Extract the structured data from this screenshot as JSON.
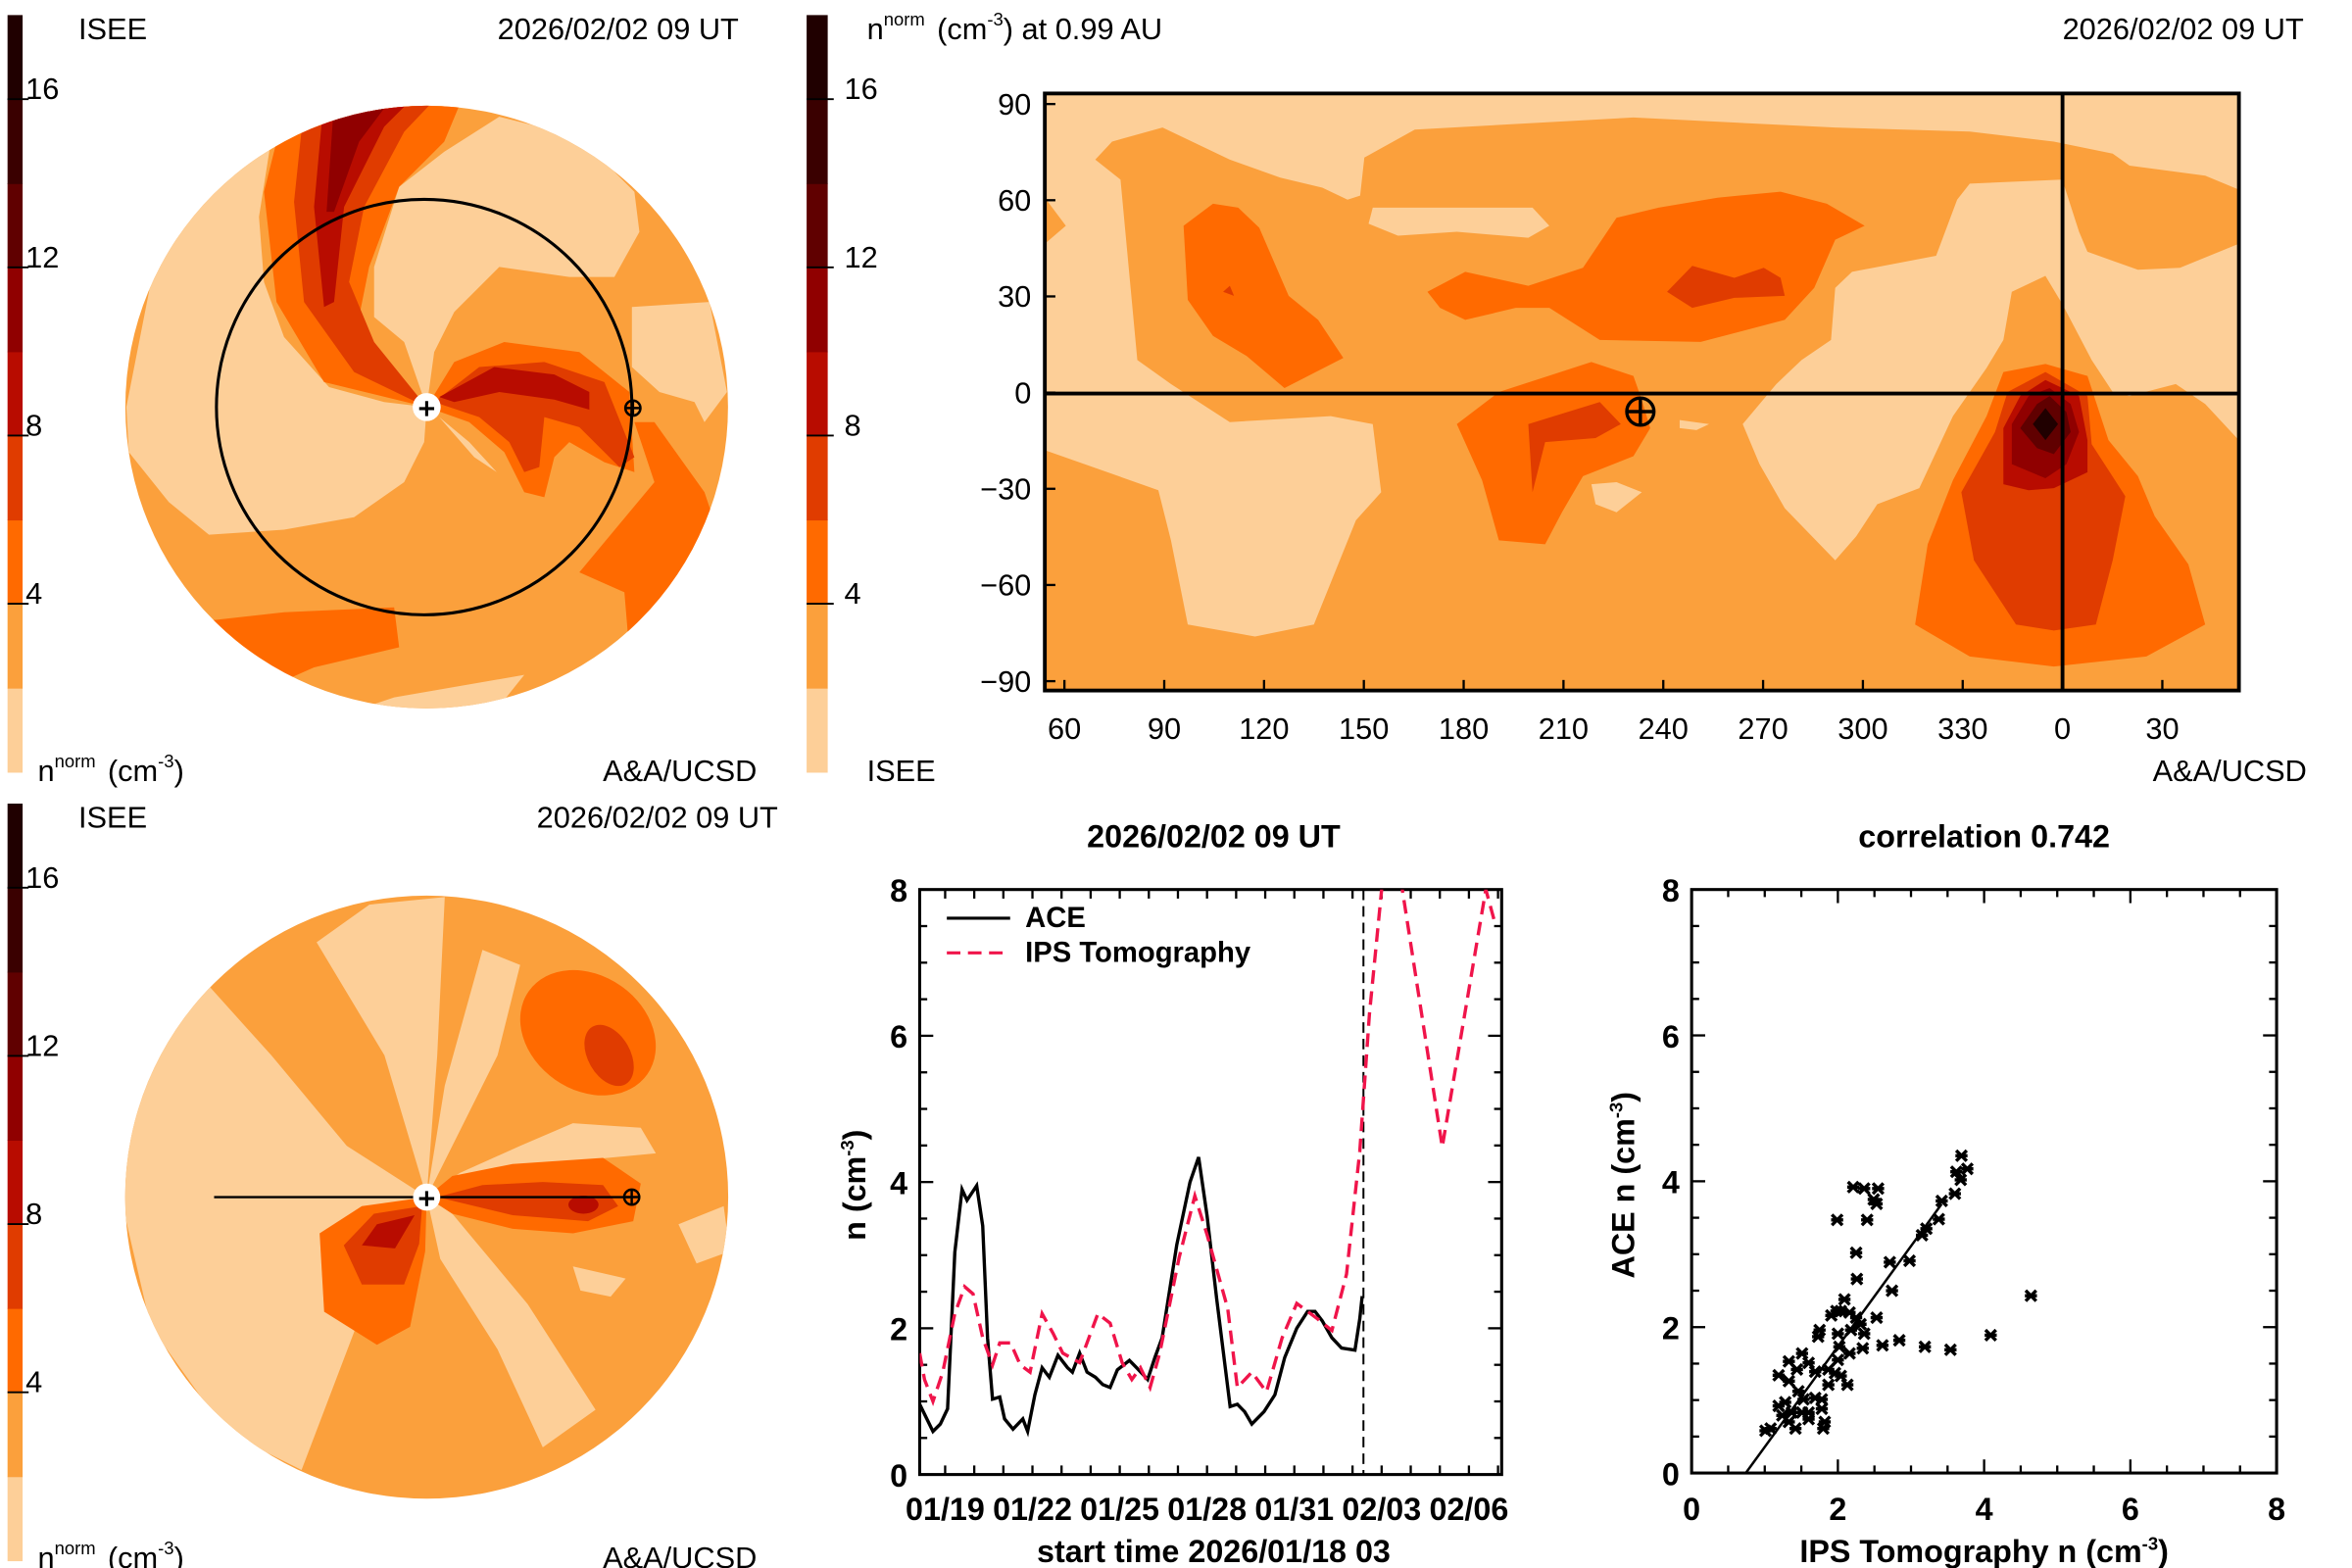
{
  "colors": {
    "levels": [
      "#fdcf98",
      "#fba03c",
      "#ff6a00",
      "#e03c00",
      "#b80c00",
      "#900000",
      "#600000",
      "#3a0000",
      "#200000"
    ],
    "ace": "#000000",
    "ips": "#f0144a"
  },
  "colorbar": {
    "min": 0,
    "max": 18,
    "step": 2,
    "ticks": [
      "4",
      "8",
      "12",
      "16"
    ]
  },
  "panel_top_left": {
    "org": "ISEE",
    "date": "2026/02/02 09 UT",
    "credit": "A&A/UCSD",
    "unit": {
      "base": "n",
      "sup": "norm",
      "open": "(cm",
      "exp": "-3",
      "close": ")"
    }
  },
  "panel_top_right": {
    "title": {
      "base": "n",
      "sup": "norm",
      "open": "(cm",
      "exp": "-3",
      "rest": ") at 0.99 AU"
    },
    "date": "2026/02/02 09 UT",
    "org": "ISEE",
    "credit": "A&A/UCSD",
    "lon_ticks": [
      "60",
      "90",
      "120",
      "150",
      "180",
      "210",
      "240",
      "270",
      "300",
      "330",
      "0",
      "30"
    ],
    "lat_ticks": [
      "90",
      "60",
      "30",
      "0",
      "−30",
      "−60",
      "−90"
    ]
  },
  "panel_bottom_left": {
    "org": "ISEE",
    "date": "2026/02/02 09 UT",
    "credit": "A&A/UCSD",
    "unit": {
      "base": "n",
      "sup": "norm",
      "open": "(cm",
      "exp": "-3",
      "close": ")"
    }
  },
  "chart_data": [
    {
      "type": "line",
      "title": "2026/02/02 09 UT",
      "xlabel": "start time 2026/01/18 03",
      "ylabel": {
        "base": "n (cm",
        "exp": "-3",
        "close": ")"
      },
      "xlim": [
        "01/18 03",
        "02/07 03"
      ],
      "ylim": [
        0,
        8
      ],
      "xticks": [
        "01/19",
        "01/22",
        "01/25",
        "01/28",
        "01/31",
        "02/03",
        "02/06"
      ],
      "yticks": [
        "0",
        "2",
        "4",
        "6",
        "8"
      ],
      "current_time": "02/02 09",
      "legend": "top-left",
      "series": [
        {
          "name": "ACE",
          "style": "solid",
          "points": [
            [
              "01/18 03",
              0.96
            ],
            [
              "01/18 14",
              0.59
            ],
            [
              "01/18 20",
              0.69
            ],
            [
              "01/19 02",
              0.9
            ],
            [
              "01/19 08",
              3.04
            ],
            [
              "01/19 14",
              3.9
            ],
            [
              "01/19 18",
              3.75
            ],
            [
              "01/20 02",
              3.95
            ],
            [
              "01/20 07",
              3.4
            ],
            [
              "01/20 11",
              1.87
            ],
            [
              "01/20 15",
              1.03
            ],
            [
              "01/20 21",
              1.06
            ],
            [
              "01/21 01",
              0.76
            ],
            [
              "01/21 08",
              0.62
            ],
            [
              "01/21 16",
              0.76
            ],
            [
              "01/21 20",
              0.59
            ],
            [
              "01/22 02",
              1.09
            ],
            [
              "01/22 08",
              1.46
            ],
            [
              "01/22 14",
              1.33
            ],
            [
              "01/22 21",
              1.63
            ],
            [
              "01/23 05",
              1.46
            ],
            [
              "01/23 09",
              1.4
            ],
            [
              "01/23 15",
              1.66
            ],
            [
              "01/23 21",
              1.4
            ],
            [
              "01/24 04",
              1.33
            ],
            [
              "01/24 10",
              1.23
            ],
            [
              "01/24 16",
              1.19
            ],
            [
              "01/24 22",
              1.43
            ],
            [
              "01/25 08",
              1.56
            ],
            [
              "01/25 14",
              1.46
            ],
            [
              "01/25 23",
              1.3
            ],
            [
              "01/26 05",
              1.6
            ],
            [
              "01/26 11",
              1.87
            ],
            [
              "01/26 23",
              3.14
            ],
            [
              "01/27 10",
              4.0
            ],
            [
              "01/27 17",
              4.34
            ],
            [
              "01/28 00",
              3.54
            ],
            [
              "01/28 08",
              2.4
            ],
            [
              "01/28 19",
              0.93
            ],
            [
              "01/29 01",
              0.96
            ],
            [
              "01/29 07",
              0.86
            ],
            [
              "01/29 13",
              0.69
            ],
            [
              "01/29 23",
              0.86
            ],
            [
              "01/30 08",
              1.09
            ],
            [
              "01/30 16",
              1.6
            ],
            [
              "01/31 02",
              2.0
            ],
            [
              "01/31 11",
              2.23
            ],
            [
              "01/31 17",
              2.23
            ],
            [
              "01/31 23",
              2.1
            ],
            [
              "02/01 07",
              1.87
            ],
            [
              "02/01 15",
              1.73
            ],
            [
              "02/02 02",
              1.7
            ],
            [
              "02/02 06",
              2.13
            ],
            [
              "02/02 08",
              2.44
            ]
          ]
        },
        {
          "name": "IPS Tomography",
          "style": "dashed",
          "points": [
            [
              "01/18 03",
              1.66
            ],
            [
              "01/18 07",
              1.3
            ],
            [
              "01/18 14",
              1.0
            ],
            [
              "01/18 22",
              1.4
            ],
            [
              "01/19 08",
              2.2
            ],
            [
              "01/19 16",
              2.57
            ],
            [
              "01/19 23",
              2.47
            ],
            [
              "01/20 07",
              1.87
            ],
            [
              "01/20 15",
              1.5
            ],
            [
              "01/20 21",
              1.8
            ],
            [
              "01/21 06",
              1.8
            ],
            [
              "01/21 14",
              1.5
            ],
            [
              "01/21 22",
              1.4
            ],
            [
              "01/22 08",
              2.2
            ],
            [
              "01/22 17",
              1.93
            ],
            [
              "01/23 01",
              1.66
            ],
            [
              "01/23 15",
              1.53
            ],
            [
              "01/24 06",
              2.2
            ],
            [
              "01/24 16",
              2.07
            ],
            [
              "01/25 02",
              1.53
            ],
            [
              "01/25 10",
              1.3
            ],
            [
              "01/25 17",
              1.46
            ],
            [
              "01/26 01",
              1.19
            ],
            [
              "01/26 09",
              1.66
            ],
            [
              "01/27 01",
              2.97
            ],
            [
              "01/27 14",
              3.81
            ],
            [
              "01/28 00",
              3.28
            ],
            [
              "01/28 17",
              2.27
            ],
            [
              "01/29 01",
              1.19
            ],
            [
              "01/29 13",
              1.4
            ],
            [
              "01/30 01",
              1.13
            ],
            [
              "01/30 14",
              1.87
            ],
            [
              "01/31 02",
              2.34
            ],
            [
              "01/31 19",
              2.13
            ],
            [
              "02/01 07",
              1.97
            ],
            [
              "02/01 19",
              2.74
            ],
            [
              "02/02 06",
              4.42
            ],
            [
              "02/02 14",
              6.3
            ],
            [
              "02/03 00",
              8.0
            ],
            [
              "02/03 06",
              9.0
            ],
            [
              "02/03 17",
              8.0
            ],
            [
              "02/05 02",
              4.48
            ],
            [
              "02/06 14",
              8.0
            ],
            [
              "02/06 21",
              7.57
            ]
          ]
        }
      ]
    },
    {
      "type": "scatter",
      "title": "correlation 0.742",
      "xlabel": {
        "base": "IPS Tomography n (cm",
        "exp": "-3",
        "close": ")"
      },
      "ylabel": {
        "base": "ACE n (cm",
        "exp": "-3",
        "close": ")"
      },
      "xlim": [
        0,
        8
      ],
      "ylim": [
        0,
        8
      ],
      "xticks": [
        "0",
        "2",
        "4",
        "6",
        "8"
      ],
      "yticks": [
        "0",
        "2",
        "4",
        "6",
        "8"
      ],
      "fit_line": {
        "slope": 1.377,
        "intercept": -1.02,
        "x_range": [
          0.74,
          3.42
        ]
      },
      "points": [
        [
          3.69,
          4.35
        ],
        [
          3.62,
          4.13
        ],
        [
          3.77,
          4.17
        ],
        [
          3.68,
          4.02
        ],
        [
          3.6,
          3.83
        ],
        [
          3.42,
          3.73
        ],
        [
          3.38,
          3.48
        ],
        [
          3.21,
          3.35
        ],
        [
          3.15,
          3.26
        ],
        [
          2.98,
          2.91
        ],
        [
          2.71,
          2.89
        ],
        [
          2.74,
          2.5
        ],
        [
          2.53,
          2.13
        ],
        [
          2.61,
          1.75
        ],
        [
          2.84,
          1.82
        ],
        [
          3.19,
          1.73
        ],
        [
          3.54,
          1.69
        ],
        [
          4.09,
          1.89
        ],
        [
          4.64,
          2.43
        ],
        [
          2.21,
          3.92
        ],
        [
          2.36,
          3.9
        ],
        [
          2.55,
          3.9
        ],
        [
          2.49,
          3.75
        ],
        [
          2.53,
          3.69
        ],
        [
          1.99,
          3.47
        ],
        [
          2.4,
          3.47
        ],
        [
          2.25,
          3.02
        ],
        [
          2.26,
          2.66
        ],
        [
          2.09,
          2.38
        ],
        [
          1.91,
          2.16
        ],
        [
          1.98,
          2.22
        ],
        [
          2.04,
          2.22
        ],
        [
          2.16,
          2.2
        ],
        [
          2.25,
          2.13
        ],
        [
          2.31,
          2.04
        ],
        [
          2.36,
          1.91
        ],
        [
          2.0,
          1.91
        ],
        [
          2.18,
          1.96
        ],
        [
          1.75,
          1.96
        ],
        [
          1.73,
          1.87
        ],
        [
          2.02,
          1.73
        ],
        [
          2.34,
          1.71
        ],
        [
          2.16,
          1.64
        ],
        [
          2.0,
          1.55
        ],
        [
          1.51,
          1.64
        ],
        [
          1.33,
          1.53
        ],
        [
          1.6,
          1.51
        ],
        [
          1.44,
          1.42
        ],
        [
          1.19,
          1.34
        ],
        [
          1.69,
          1.39
        ],
        [
          1.87,
          1.42
        ],
        [
          1.96,
          1.37
        ],
        [
          2.04,
          1.33
        ],
        [
          2.13,
          1.21
        ],
        [
          1.87,
          1.21
        ],
        [
          1.33,
          1.26
        ],
        [
          1.46,
          1.12
        ],
        [
          1.53,
          1.01
        ],
        [
          1.69,
          1.03
        ],
        [
          1.78,
          1.01
        ],
        [
          1.19,
          0.92
        ],
        [
          1.28,
          0.97
        ],
        [
          1.37,
          0.83
        ],
        [
          1.24,
          0.79
        ],
        [
          1.51,
          0.83
        ],
        [
          1.6,
          0.74
        ],
        [
          1.78,
          0.88
        ],
        [
          1.82,
          0.7
        ],
        [
          1.8,
          0.61
        ],
        [
          1.42,
          0.61
        ],
        [
          1.33,
          0.7
        ],
        [
          1.01,
          0.58
        ],
        [
          1.08,
          0.61
        ],
        [
          1.6,
          0.83
        ]
      ]
    }
  ]
}
